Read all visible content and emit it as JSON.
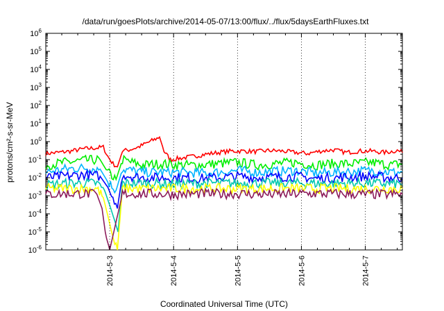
{
  "chart_data": {
    "type": "line",
    "title": "/data/run/goesPlots/archive/2014-05-07/13:00/flux/../flux/5daysEarthFluxes.txt",
    "xlabel": "Coordinated Universal Time (UTC)",
    "ylabel": "protons/cm²-s-sr-MeV",
    "yscale": "log",
    "ylim": [
      1e-06,
      1000000.0
    ],
    "xlim": [
      2.0,
      7.58
    ],
    "x_unit": "day of 2014-05",
    "grid": false,
    "legend": "none",
    "x_ticks": [
      {
        "x": 3,
        "label": "2014-5-3"
      },
      {
        "x": 4,
        "label": "2014-5-4"
      },
      {
        "x": 5,
        "label": "2014-5-5"
      },
      {
        "x": 6,
        "label": "2014-5-6"
      },
      {
        "x": 7,
        "label": "2014-5-7"
      }
    ],
    "y_ticks": [
      {
        "exp": -6,
        "base": "10",
        "sup": "-6"
      },
      {
        "exp": -5,
        "base": "10",
        "sup": "-5"
      },
      {
        "exp": -4,
        "base": "10",
        "sup": "-4"
      },
      {
        "exp": -3,
        "base": "10",
        "sup": "-3"
      },
      {
        "exp": -2,
        "base": "10",
        "sup": "-2"
      },
      {
        "exp": -1,
        "base": "10",
        "sup": "-1"
      },
      {
        "exp": 0,
        "base": "10",
        "sup": "0"
      },
      {
        "exp": 1,
        "base": "10",
        "sup": "1"
      },
      {
        "exp": 2,
        "base": "10",
        "sup": "2"
      },
      {
        "exp": 3,
        "base": "10",
        "sup": "3"
      },
      {
        "exp": 4,
        "base": "10",
        "sup": "4"
      },
      {
        "exp": 5,
        "base": "10",
        "sup": "5"
      },
      {
        "exp": 6,
        "base": "10",
        "sup": "6"
      }
    ],
    "series": [
      {
        "color": "#ff0000",
        "x": [
          2.0,
          2.2,
          2.4,
          2.6,
          2.8,
          2.9,
          2.97,
          3.05,
          3.12,
          3.2,
          3.3,
          3.45,
          3.6,
          3.7,
          3.78,
          3.85,
          3.95,
          4.1,
          4.3,
          4.5,
          4.7,
          4.9,
          5.1,
          5.3,
          5.5,
          5.7,
          5.9,
          6.1,
          6.3,
          6.5,
          6.7,
          6.9,
          7.1,
          7.3,
          7.5,
          7.58
        ],
        "values": [
          0.22,
          0.25,
          0.3,
          0.4,
          0.45,
          0.5,
          0.15,
          0.06,
          0.04,
          0.3,
          0.35,
          0.5,
          0.9,
          1.3,
          1.8,
          0.3,
          0.1,
          0.12,
          0.15,
          0.2,
          0.25,
          0.3,
          0.3,
          0.28,
          0.32,
          0.3,
          0.25,
          0.22,
          0.3,
          0.35,
          0.25,
          0.3,
          0.3,
          0.25,
          0.32,
          0.25
        ]
      },
      {
        "color": "#00ee00",
        "x": [
          2.0,
          2.3,
          2.6,
          2.85,
          2.97,
          3.1,
          3.2,
          3.35,
          3.5,
          3.8,
          4.1,
          4.4,
          4.7,
          5.0,
          5.3,
          5.6,
          5.9,
          6.2,
          6.5,
          6.8,
          7.1,
          7.4,
          7.58
        ],
        "values": [
          0.05,
          0.07,
          0.09,
          0.1,
          0.02,
          0.008,
          0.1,
          0.07,
          0.05,
          0.06,
          0.05,
          0.05,
          0.06,
          0.07,
          0.05,
          0.06,
          0.07,
          0.05,
          0.06,
          0.06,
          0.07,
          0.05,
          0.06
        ]
      },
      {
        "color": "#00b4ff",
        "x": [
          2.0,
          2.3,
          2.6,
          2.85,
          2.97,
          3.1,
          3.2,
          3.35,
          3.5,
          3.8,
          4.1,
          4.4,
          4.7,
          5.0,
          5.3,
          5.6,
          5.9,
          6.2,
          6.5,
          6.8,
          7.1,
          7.4,
          7.58
        ],
        "values": [
          0.02,
          0.03,
          0.035,
          0.03,
          0.006,
          0.002,
          0.03,
          0.025,
          0.02,
          0.02,
          0.02,
          0.018,
          0.02,
          0.025,
          0.02,
          0.022,
          0.025,
          0.018,
          0.02,
          0.022,
          0.025,
          0.02,
          0.02
        ]
      },
      {
        "color": "#0000ff",
        "x": [
          2.0,
          2.3,
          2.6,
          2.85,
          2.97,
          3.05,
          3.12,
          3.2,
          3.35,
          3.5,
          3.8,
          4.1,
          4.4,
          4.7,
          5.0,
          5.3,
          5.6,
          5.9,
          6.2,
          6.5,
          6.8,
          7.1,
          7.4,
          7.58
        ],
        "values": [
          0.01,
          0.012,
          0.015,
          0.012,
          0.003,
          0.0006,
          0.0002,
          0.015,
          0.012,
          0.01,
          0.01,
          0.01,
          0.009,
          0.01,
          0.012,
          0.01,
          0.011,
          0.012,
          0.009,
          0.01,
          0.011,
          0.012,
          0.01,
          0.01
        ]
      },
      {
        "color": "#00c8b0",
        "x": [
          2.0,
          2.4,
          2.8,
          2.92,
          3.0,
          3.08,
          3.13,
          3.2,
          3.6,
          4.0,
          4.5,
          5.0,
          5.5,
          6.0,
          6.5,
          7.0,
          7.58
        ],
        "values": [
          0.004,
          0.005,
          0.005,
          0.002,
          0.0003,
          4e-05,
          1e-05,
          0.005,
          0.005,
          0.0045,
          0.005,
          0.005,
          0.005,
          0.005,
          0.0048,
          0.005,
          0.0045
        ]
      },
      {
        "color": "#ffff00",
        "x": [
          2.0,
          2.4,
          2.8,
          2.9,
          2.97,
          3.03,
          3.08,
          3.12,
          3.2,
          3.6,
          4.0,
          4.5,
          5.0,
          5.5,
          6.0,
          6.5,
          7.0,
          7.58
        ],
        "values": [
          0.0025,
          0.0025,
          0.0025,
          0.0008,
          8e-05,
          1e-05,
          2e-06,
          1e-06,
          0.0025,
          0.0025,
          0.0025,
          0.0025,
          0.0025,
          0.0025,
          0.0025,
          0.0025,
          0.0025,
          0.0025
        ]
      },
      {
        "color": "#8b1a5a",
        "x": [
          2.0,
          2.3,
          2.6,
          2.8,
          2.88,
          2.93,
          2.97,
          3.0,
          3.2,
          3.6,
          4.0,
          4.5,
          5.0,
          5.5,
          6.0,
          6.5,
          7.0,
          7.58
        ],
        "values": [
          0.0012,
          0.0013,
          0.0013,
          0.0012,
          0.0002,
          1e-05,
          2e-06,
          1e-06,
          0.0013,
          0.0013,
          0.0012,
          0.0013,
          0.0013,
          0.0012,
          0.0013,
          0.0013,
          0.0012,
          0.0012
        ]
      }
    ]
  }
}
